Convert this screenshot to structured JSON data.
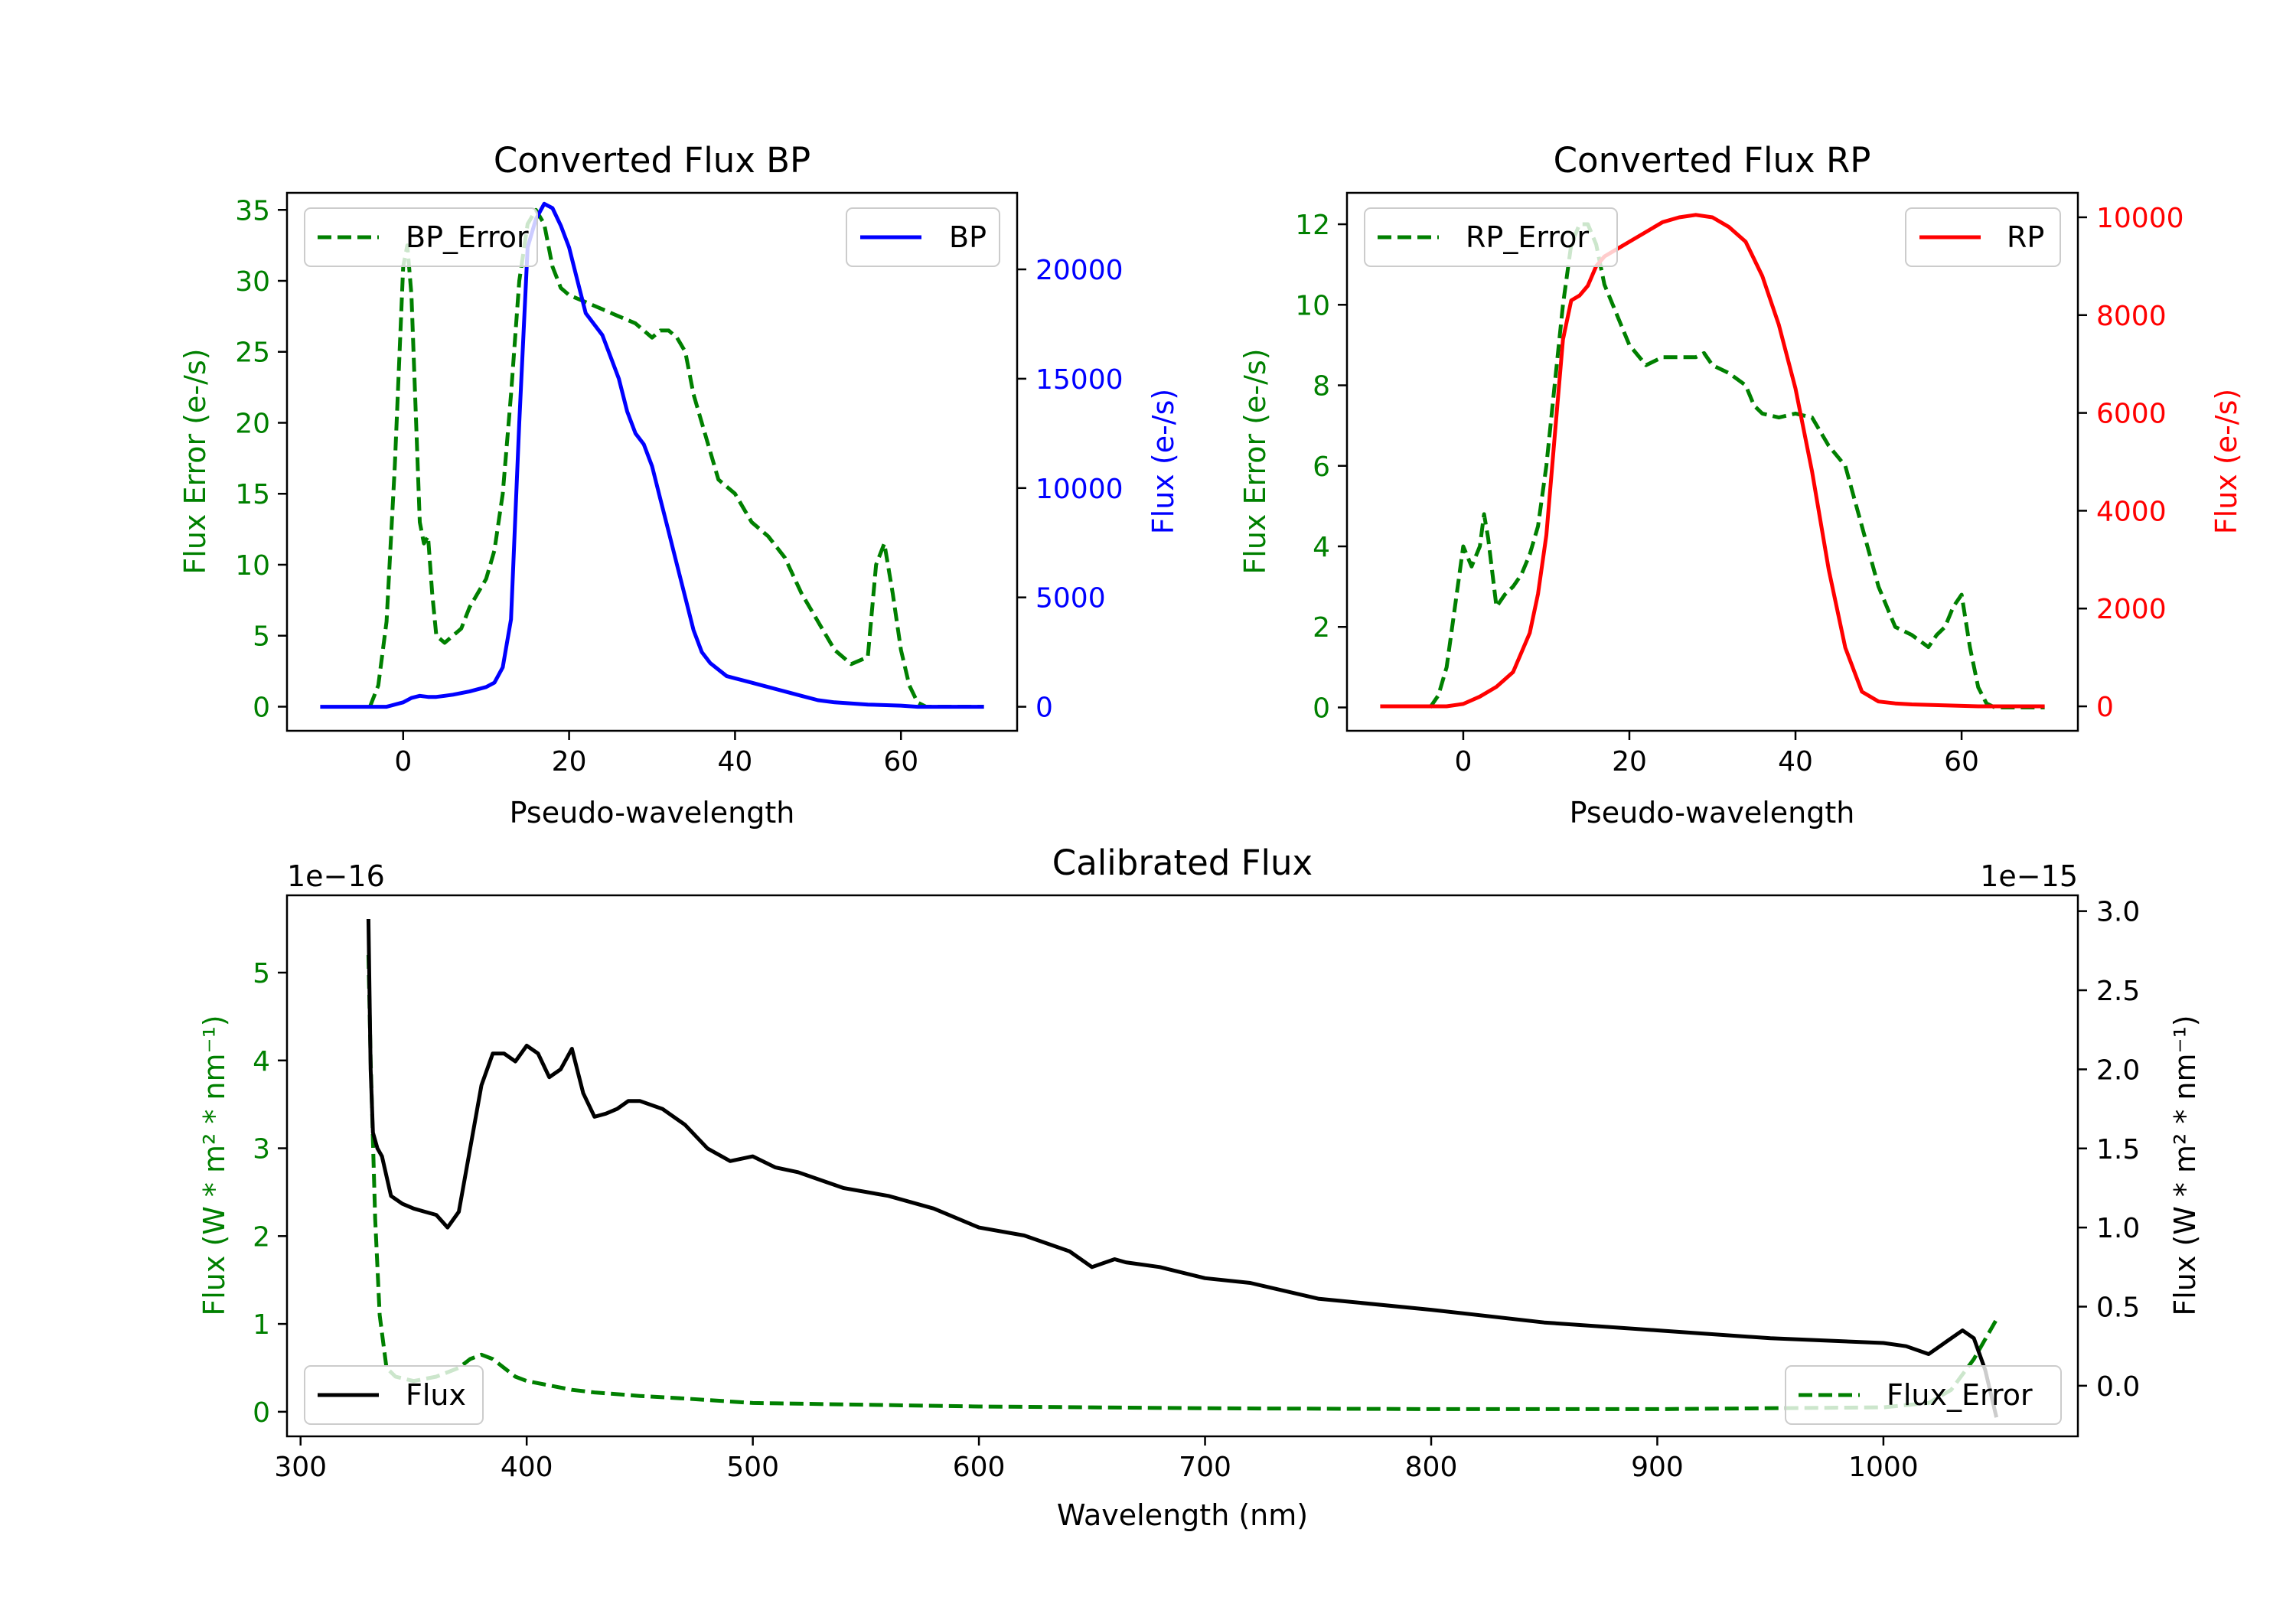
{
  "colors": {
    "error": "#008000",
    "bp": "#0000ff",
    "rp": "#ff0000",
    "flux": "#000000",
    "axis": "#000000"
  },
  "chart_data": [
    {
      "id": "bp",
      "type": "line",
      "title": "Converted Flux BP",
      "xlabel": "Pseudo-wavelength",
      "ylabel_left": "Flux Error (e-/s)",
      "ylabel_right": "Flux (e-/s)",
      "xlim": [
        -14,
        74
      ],
      "ylim_left": [
        -1.7,
        36.2
      ],
      "ylim_right": [
        -1100,
        23500
      ],
      "xticks": [
        0,
        20,
        40,
        60
      ],
      "xtick_labels": [
        "0",
        "20",
        "40",
        "60"
      ],
      "yticks_left": [
        0,
        5,
        10,
        15,
        20,
        25,
        30,
        35
      ],
      "ytick_labels_left": [
        "0",
        "5",
        "10",
        "15",
        "20",
        "25",
        "30",
        "35"
      ],
      "yticks_right": [
        0,
        5000,
        10000,
        15000,
        20000
      ],
      "ytick_labels_right": [
        "0",
        "5000",
        "10000",
        "15000",
        "20000"
      ],
      "legend_left": "BP_Error",
      "legend_right": "BP",
      "series": [
        {
          "name": "BP_Error",
          "axis": "left",
          "style": "dashed",
          "color_key": "error",
          "x": [
            -4,
            -3,
            -2,
            -1,
            0,
            0.5,
            1,
            2,
            2.5,
            3,
            3.5,
            4,
            5,
            6,
            7,
            8,
            9,
            10,
            11,
            12,
            13,
            14,
            15,
            16,
            17,
            18,
            19,
            20,
            22,
            24,
            26,
            28,
            30,
            31,
            32,
            33,
            34,
            35,
            36,
            38,
            40,
            42,
            44,
            46,
            48,
            50,
            52,
            54,
            56,
            57,
            58,
            59,
            60,
            61,
            62,
            63,
            64,
            65,
            68,
            70
          ],
          "values": [
            0,
            1.5,
            6,
            17,
            31,
            32.5,
            29,
            13,
            11.5,
            12,
            8,
            5,
            4.5,
            5,
            5.5,
            7,
            8,
            9,
            11,
            15,
            22,
            30,
            34,
            35,
            34,
            31,
            29.5,
            29,
            28.5,
            28,
            27.5,
            27,
            26,
            26.5,
            26.5,
            26,
            25,
            22,
            20,
            16,
            15,
            13,
            12,
            10.5,
            8,
            6,
            4,
            3,
            3.5,
            10,
            11.5,
            8,
            4,
            1.5,
            0.3,
            0,
            0,
            0,
            0,
            0
          ]
        },
        {
          "name": "BP",
          "axis": "right",
          "style": "solid",
          "color_key": "bp",
          "x": [
            -10,
            -5,
            -2,
            0,
            1,
            2,
            3,
            4,
            5,
            6,
            8,
            10,
            11,
            12,
            13,
            14,
            15,
            16,
            17,
            18,
            19,
            20,
            21,
            22,
            23,
            24,
            25,
            26,
            27,
            28,
            29,
            30,
            31,
            32,
            33,
            34,
            35,
            36,
            37,
            38,
            39,
            40,
            42,
            44,
            46,
            48,
            50,
            52,
            56,
            60,
            62,
            66,
            70
          ],
          "values": [
            0,
            0,
            0,
            200,
            400,
            500,
            450,
            450,
            500,
            550,
            700,
            900,
            1100,
            1800,
            4000,
            13000,
            21000,
            22300,
            23000,
            22800,
            22000,
            21000,
            19500,
            18000,
            17500,
            17000,
            16000,
            15000,
            13500,
            12500,
            12000,
            11000,
            9500,
            8000,
            6500,
            5000,
            3500,
            2500,
            2000,
            1700,
            1400,
            1300,
            1100,
            900,
            700,
            500,
            300,
            200,
            100,
            50,
            0,
            0,
            0
          ]
        }
      ]
    },
    {
      "id": "rp",
      "type": "line",
      "title": "Converted Flux RP",
      "xlabel": "Pseudo-wavelength",
      "ylabel_left": "Flux Error (e-/s)",
      "ylabel_right": "Flux (e-/s)",
      "xlim": [
        -14,
        74
      ],
      "ylim_left": [
        -0.58,
        12.78
      ],
      "ylim_right": [
        -500,
        10500
      ],
      "xticks": [
        0,
        20,
        40,
        60
      ],
      "xtick_labels": [
        "0",
        "20",
        "40",
        "60"
      ],
      "yticks_left": [
        0,
        2,
        4,
        6,
        8,
        10,
        12
      ],
      "ytick_labels_left": [
        "0",
        "2",
        "4",
        "6",
        "8",
        "10",
        "12"
      ],
      "yticks_right": [
        0,
        2000,
        4000,
        6000,
        8000,
        10000
      ],
      "ytick_labels_right": [
        "0",
        "2000",
        "4000",
        "6000",
        "8000",
        "10000"
      ],
      "legend_left": "RP_Error",
      "legend_right": "RP",
      "series": [
        {
          "name": "RP_Error",
          "axis": "left",
          "style": "dashed",
          "color_key": "error",
          "x": [
            -4,
            -3,
            -2,
            -1,
            0,
            1,
            2,
            2.5,
            3,
            4,
            5,
            6,
            7,
            8,
            9,
            10,
            11,
            12,
            13,
            14,
            15,
            16,
            17,
            18,
            19,
            20,
            22,
            24,
            26,
            28,
            29,
            30,
            32,
            34,
            35,
            36,
            38,
            40,
            42,
            44,
            46,
            48,
            50,
            52,
            54,
            56,
            57,
            58,
            59,
            60,
            61,
            62,
            63,
            64,
            66,
            70
          ],
          "values": [
            0,
            0.3,
            1,
            2.5,
            4,
            3.5,
            4,
            4.8,
            4.2,
            2.5,
            2.8,
            3,
            3.3,
            3.8,
            4.5,
            6,
            8,
            10,
            11.5,
            12,
            12,
            11.5,
            10.5,
            10,
            9.5,
            9,
            8.5,
            8.7,
            8.7,
            8.7,
            8.8,
            8.5,
            8.3,
            8,
            7.5,
            7.3,
            7.2,
            7.3,
            7.2,
            6.5,
            6,
            4.5,
            3,
            2,
            1.8,
            1.5,
            1.8,
            2,
            2.5,
            2.8,
            1.5,
            0.5,
            0.1,
            0,
            0,
            0
          ]
        },
        {
          "name": "RP",
          "axis": "right",
          "style": "solid",
          "color_key": "rp",
          "x": [
            -10,
            -5,
            -2,
            0,
            2,
            4,
            6,
            8,
            9,
            10,
            11,
            12,
            13,
            14,
            15,
            16,
            17,
            18,
            19,
            20,
            22,
            24,
            26,
            28,
            30,
            32,
            34,
            36,
            38,
            40,
            42,
            44,
            46,
            48,
            50,
            52,
            54,
            56,
            58,
            60,
            62,
            64,
            66,
            70
          ],
          "values": [
            0,
            0,
            0,
            50,
            200,
            400,
            700,
            1500,
            2300,
            3500,
            5500,
            7500,
            8300,
            8400,
            8600,
            9000,
            9200,
            9300,
            9400,
            9500,
            9700,
            9900,
            10000,
            10050,
            10000,
            9800,
            9500,
            8800,
            7800,
            6500,
            4800,
            2800,
            1200,
            300,
            100,
            60,
            40,
            30,
            20,
            10,
            0,
            0,
            0,
            0
          ]
        }
      ]
    },
    {
      "id": "cal",
      "type": "line",
      "title": "Calibrated Flux",
      "xlabel": "Wavelength (nm)",
      "ylabel_left": "Flux (W * m² * nm⁻¹)",
      "ylabel_right": "Flux (W * m² * nm⁻¹)",
      "left_exponent": "1e−16",
      "right_exponent": "1e−15",
      "xlim": [
        294,
        1086
      ],
      "ylim_left": [
        -0.28,
        5.88
      ],
      "ylim_right": [
        -0.32,
        3.1
      ],
      "xticks": [
        300,
        400,
        500,
        600,
        700,
        800,
        900,
        1000
      ],
      "xtick_labels": [
        "300",
        "400",
        "500",
        "600",
        "700",
        "800",
        "900",
        "1000"
      ],
      "yticks_left": [
        0,
        1,
        2,
        3,
        4,
        5
      ],
      "ytick_labels_left": [
        "0",
        "1",
        "2",
        "3",
        "4",
        "5"
      ],
      "yticks_right": [
        0,
        0.5,
        1,
        1.5,
        2,
        2.5,
        3
      ],
      "ytick_labels_right": [
        "0.0",
        "0.5",
        "1.0",
        "1.5",
        "2.0",
        "2.5",
        "3.0"
      ],
      "legend_left": "Flux",
      "legend_right": "Flux_Error",
      "series": [
        {
          "name": "Flux_Error",
          "axis": "left",
          "style": "dashed",
          "color_key": "error",
          "x": [
            330,
            331,
            333,
            335,
            338,
            342,
            350,
            360,
            370,
            375,
            380,
            385,
            390,
            395,
            400,
            410,
            420,
            430,
            440,
            450,
            470,
            500,
            550,
            600,
            650,
            700,
            800,
            900,
            1000,
            1020,
            1030,
            1040,
            1050
          ],
          "values": [
            5.2,
            4,
            2.2,
            1.1,
            0.5,
            0.4,
            0.35,
            0.4,
            0.5,
            0.6,
            0.65,
            0.6,
            0.5,
            0.4,
            0.35,
            0.3,
            0.25,
            0.22,
            0.2,
            0.18,
            0.15,
            0.1,
            0.08,
            0.06,
            0.05,
            0.04,
            0.03,
            0.03,
            0.05,
            0.1,
            0.25,
            0.6,
            1.05
          ]
        },
        {
          "name": "Flux",
          "axis": "right",
          "style": "solid",
          "color_key": "flux",
          "x": [
            330,
            331,
            332,
            334,
            336,
            340,
            345,
            350,
            355,
            360,
            365,
            370,
            375,
            380,
            385,
            390,
            395,
            400,
            405,
            410,
            415,
            420,
            425,
            430,
            435,
            440,
            445,
            450,
            460,
            470,
            480,
            490,
            500,
            510,
            520,
            530,
            540,
            560,
            580,
            600,
            620,
            640,
            650,
            660,
            665,
            680,
            700,
            720,
            750,
            800,
            850,
            900,
            950,
            1000,
            1010,
            1020,
            1030,
            1035,
            1040,
            1045,
            1050
          ],
          "values": [
            2.95,
            2.0,
            1.6,
            1.5,
            1.45,
            1.2,
            1.15,
            1.12,
            1.1,
            1.08,
            1.0,
            1.1,
            1.5,
            1.9,
            2.1,
            2.1,
            2.05,
            2.15,
            2.1,
            1.95,
            2.0,
            2.13,
            1.85,
            1.7,
            1.72,
            1.75,
            1.8,
            1.8,
            1.75,
            1.65,
            1.5,
            1.42,
            1.45,
            1.38,
            1.35,
            1.3,
            1.25,
            1.2,
            1.12,
            1.0,
            0.95,
            0.85,
            0.75,
            0.8,
            0.78,
            0.75,
            0.68,
            0.65,
            0.55,
            0.48,
            0.4,
            0.35,
            0.3,
            0.27,
            0.25,
            0.2,
            0.3,
            0.35,
            0.3,
            0.1,
            -0.2
          ]
        }
      ]
    }
  ]
}
